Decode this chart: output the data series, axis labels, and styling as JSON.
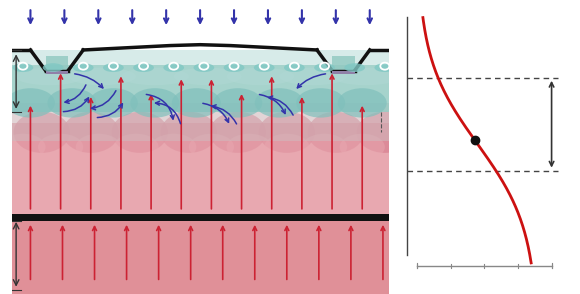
{
  "bg_color": "#ffffff",
  "rain_color": "#3333aa",
  "salt_deep_color": "#e09098",
  "salt_mid_color": "#e8a8b0",
  "salt_light_color": "#f0c0c8",
  "teal_color": "#90c8c0",
  "teal_light_color": "#b0d8d4",
  "ditch_color": "#111111",
  "drain_color": "#8080a0",
  "confining_color": "#111111",
  "bubble_color": "#ffffff",
  "blue_arrow_color": "#3333aa",
  "red_arrow_color": "#cc2233",
  "curve_color": "#cc1111",
  "dot_color": "#111111",
  "measure_color": "#333333"
}
